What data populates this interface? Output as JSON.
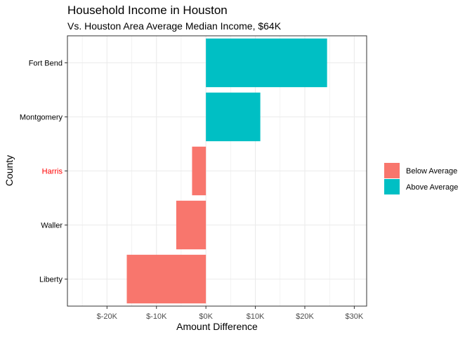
{
  "chart_data": {
    "type": "bar",
    "orientation": "horizontal",
    "title": "Household Income in Houston",
    "subtitle": "Vs. Houston Area Average Median Income, $64K",
    "xlabel": "Amount Difference",
    "ylabel": "County",
    "categories": [
      "Fort Bend",
      "Montgomery",
      "Harris",
      "Waller",
      "Liberty"
    ],
    "values": [
      24500,
      11000,
      -2800,
      -6000,
      -16000
    ],
    "groups": [
      "Above Average",
      "Above Average",
      "Below Average",
      "Below Average",
      "Below Average"
    ],
    "highlighted_category": "Harris",
    "highlight_color": "#ff0000",
    "xlim": [
      -28000,
      32500
    ],
    "x_ticks": [
      -20000,
      -10000,
      0,
      10000,
      20000,
      30000
    ],
    "x_tick_labels": [
      "$-20K",
      "$-10K",
      "$0K",
      "$10K",
      "$20K",
      "$30K"
    ],
    "grid": true,
    "legend": {
      "position": "right",
      "items": [
        {
          "label": "Below Average",
          "color": "#f8766d"
        },
        {
          "label": "Above Average",
          "color": "#00bfc4"
        }
      ]
    }
  }
}
